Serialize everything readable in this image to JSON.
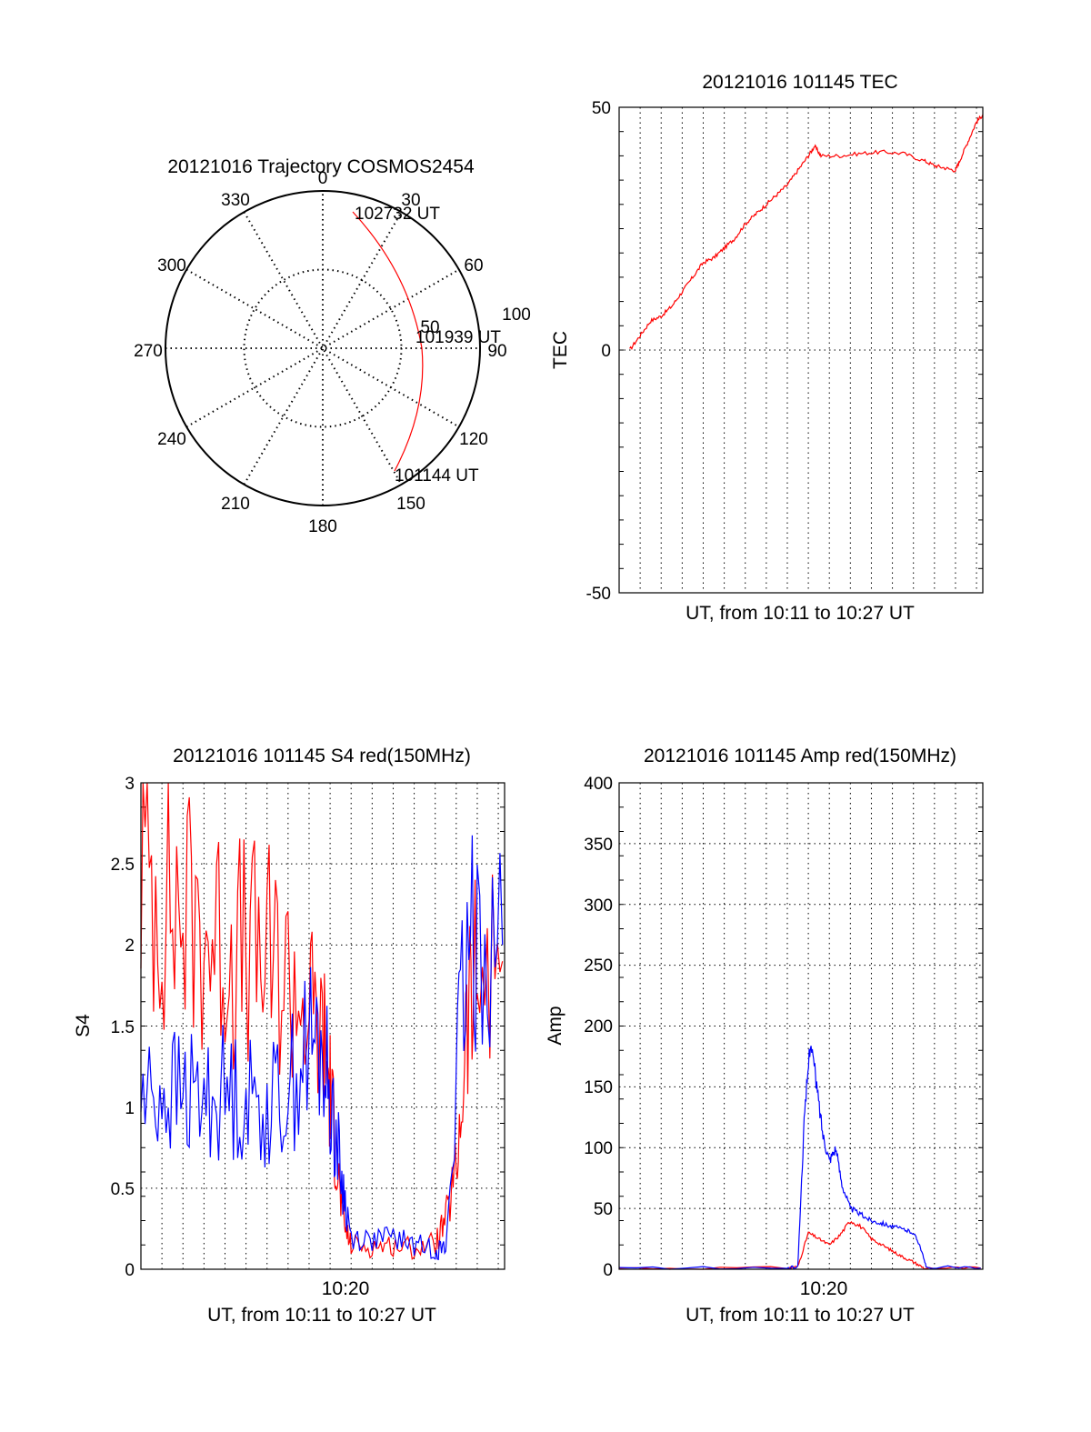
{
  "polar": {
    "title": "20121016 Trajectory COSMOS2454",
    "angle_labels": [
      "0",
      "30",
      "60",
      "90",
      "120",
      "150",
      "180",
      "210",
      "240",
      "270",
      "300",
      "330"
    ],
    "radius_labels": [
      "100",
      "50"
    ],
    "time_labels": [
      "102732 UT",
      "101939 UT",
      "101144 UT"
    ]
  },
  "chart_data": [
    {
      "type": "line",
      "title": "20121016 101145 TEC",
      "xlabel": "UT, from 10:11 to 10:27 UT",
      "ylabel": "TEC",
      "ylim": [
        -50,
        50
      ],
      "yticks": [
        "50",
        "0",
        "-50"
      ],
      "grid": true,
      "series": [
        {
          "color": "#ff0000",
          "points": [
            [
              0.5,
              0
            ],
            [
              1.0,
              3
            ],
            [
              1.5,
              6
            ],
            [
              2.0,
              7
            ],
            [
              2.5,
              9
            ],
            [
              3.0,
              12
            ],
            [
              3.5,
              15
            ],
            [
              4.0,
              18
            ],
            [
              4.5,
              19
            ],
            [
              5.0,
              21
            ],
            [
              5.5,
              23
            ],
            [
              6.0,
              26
            ],
            [
              6.5,
              28
            ],
            [
              7.0,
              30
            ],
            [
              7.5,
              32
            ],
            [
              8.0,
              34
            ],
            [
              8.5,
              37
            ],
            [
              9.0,
              40
            ],
            [
              9.3,
              42
            ],
            [
              9.6,
              40
            ],
            [
              10.5,
              40
            ],
            [
              11.5,
              40.5
            ],
            [
              12.5,
              40.8
            ],
            [
              13.5,
              40.5
            ],
            [
              14.5,
              39
            ],
            [
              15.0,
              38
            ],
            [
              15.5,
              37.5
            ],
            [
              16.0,
              37
            ],
            [
              16.2,
              39
            ],
            [
              16.6,
              43
            ],
            [
              17.0,
              47
            ],
            [
              17.3,
              48.5
            ]
          ]
        }
      ]
    },
    {
      "type": "line",
      "title": "20121016 101145 S4 red(150MHz)",
      "xlabel": "UT, from 10:11 to 10:27 UT",
      "ylabel": "S4",
      "xtick_labels": [
        "10:20"
      ],
      "ylim": [
        0,
        3
      ],
      "yticks": [
        "0",
        "0.5",
        "1",
        "1.5",
        "2",
        "2.5",
        "3"
      ],
      "grid": true,
      "series": [
        {
          "color": "#ff0000",
          "points": [
            [
              0,
              2.5
            ],
            [
              1,
              2.3
            ],
            [
              2,
              2.2
            ],
            [
              3,
              2.1
            ],
            [
              4,
              2.0
            ],
            [
              5,
              1.95
            ],
            [
              6,
              1.9
            ],
            [
              7,
              1.8
            ],
            [
              8,
              1.6
            ],
            [
              8.7,
              1.4
            ],
            [
              9.0,
              1.1
            ],
            [
              9.3,
              0.7
            ],
            [
              9.6,
              0.3
            ],
            [
              10,
              0.15
            ],
            [
              11,
              0.14
            ],
            [
              12,
              0.15
            ],
            [
              13,
              0.13
            ],
            [
              14,
              0.16
            ],
            [
              14.5,
              0.3
            ],
            [
              15,
              0.6
            ],
            [
              15.5,
              1.5
            ],
            [
              16,
              1.8
            ],
            [
              17.2,
              1.9
            ]
          ]
        },
        {
          "color": "#0000ff",
          "points": [
            [
              0,
              1.05
            ],
            [
              1,
              1.1
            ],
            [
              2,
              1.08
            ],
            [
              3,
              1.05
            ],
            [
              4,
              1.1
            ],
            [
              5,
              1.05
            ],
            [
              6,
              1.0
            ],
            [
              7,
              1.1
            ],
            [
              8,
              1.4
            ],
            [
              8.7,
              1.3
            ],
            [
              9.2,
              0.9
            ],
            [
              9.6,
              0.5
            ],
            [
              10,
              0.2
            ],
            [
              11,
              0.18
            ],
            [
              12,
              0.2
            ],
            [
              13,
              0.15
            ],
            [
              14,
              0.13
            ],
            [
              14.5,
              0.12
            ],
            [
              15.2,
              1.5
            ],
            [
              16,
              2.2
            ],
            [
              17.2,
              2.0
            ]
          ]
        }
      ]
    },
    {
      "type": "line",
      "title": "20121016 101145 Amp red(150MHz)",
      "xlabel": "UT, from 10:11 to 10:27 UT",
      "ylabel": "Amp",
      "xtick_labels": [
        "10:20"
      ],
      "ylim": [
        0,
        400
      ],
      "yticks": [
        "0",
        "50",
        "100",
        "150",
        "200",
        "250",
        "300",
        "350",
        "400"
      ],
      "grid": true,
      "series": [
        {
          "color": "#ff0000",
          "points": [
            [
              0,
              1
            ],
            [
              8.0,
              1
            ],
            [
              8.5,
              2
            ],
            [
              9.0,
              30
            ],
            [
              9.5,
              25
            ],
            [
              10.0,
              20
            ],
            [
              10.5,
              28
            ],
            [
              11.0,
              40
            ],
            [
              11.5,
              35
            ],
            [
              12.0,
              25
            ],
            [
              12.5,
              20
            ],
            [
              13.0,
              15
            ],
            [
              13.5,
              10
            ],
            [
              14.0,
              6
            ],
            [
              14.5,
              1
            ],
            [
              17.2,
              1
            ]
          ]
        },
        {
          "color": "#0000ff",
          "points": [
            [
              0,
              1
            ],
            [
              8.0,
              1
            ],
            [
              8.5,
              2
            ],
            [
              8.8,
              120
            ],
            [
              9.1,
              190
            ],
            [
              9.4,
              150
            ],
            [
              9.7,
              110
            ],
            [
              10.0,
              90
            ],
            [
              10.3,
              100
            ],
            [
              10.6,
              70
            ],
            [
              11.0,
              50
            ],
            [
              11.5,
              45
            ],
            [
              12.0,
              40
            ],
            [
              12.5,
              38
            ],
            [
              13.0,
              35
            ],
            [
              13.5,
              33
            ],
            [
              14.0,
              30
            ],
            [
              14.3,
              20
            ],
            [
              14.6,
              2
            ],
            [
              17.2,
              1
            ]
          ]
        }
      ]
    }
  ]
}
